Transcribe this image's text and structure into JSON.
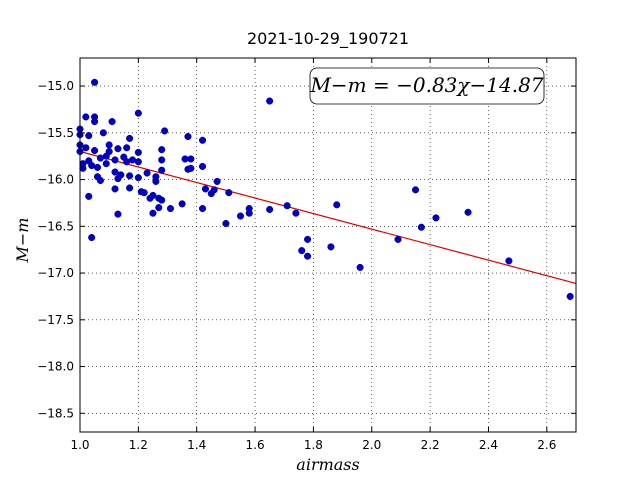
{
  "chart_data": {
    "type": "scatter",
    "title": "2021-10-29_190721",
    "xlabel": "airmass",
    "ylabel": "M−m",
    "xlim": [
      1.0,
      2.7
    ],
    "ylim": [
      -18.7,
      -14.7
    ],
    "y_inverted": true,
    "grid": true,
    "x_ticks": [
      1.0,
      1.2,
      1.4,
      1.6,
      1.8,
      2.0,
      2.2,
      2.4,
      2.6
    ],
    "x_tick_labels": [
      "1.0",
      "1.2",
      "1.4",
      "1.6",
      "1.8",
      "2.0",
      "2.2",
      "2.4",
      "2.6"
    ],
    "y_ticks": [
      -15.0,
      -15.5,
      -16.0,
      -16.5,
      -17.0,
      -17.5,
      -18.0,
      -18.5
    ],
    "y_tick_labels": [
      "−15.0",
      "−15.5",
      "−16.0",
      "−16.5",
      "−17.0",
      "−17.5",
      "−18.0",
      "−18.5"
    ],
    "annotation": "M−m = −0.83χ−14.87",
    "point_color": "#0000cc",
    "fit_color": "#dd0000",
    "fit": {
      "slope": -0.83,
      "intercept": -14.87,
      "x_range": [
        1.0,
        2.7
      ]
    },
    "points": [
      {
        "x": 1.0,
        "y": -15.46
      },
      {
        "x": 1.0,
        "y": -15.52
      },
      {
        "x": 1.0,
        "y": -15.63
      },
      {
        "x": 1.0,
        "y": -15.7
      },
      {
        "x": 1.01,
        "y": -15.88
      },
      {
        "x": 1.01,
        "y": -15.83
      },
      {
        "x": 1.02,
        "y": -15.33
      },
      {
        "x": 1.02,
        "y": -15.66
      },
      {
        "x": 1.03,
        "y": -15.53
      },
      {
        "x": 1.03,
        "y": -15.8
      },
      {
        "x": 1.03,
        "y": -16.18
      },
      {
        "x": 1.04,
        "y": -15.85
      },
      {
        "x": 1.04,
        "y": -16.62
      },
      {
        "x": 1.05,
        "y": -15.33
      },
      {
        "x": 1.05,
        "y": -15.38
      },
      {
        "x": 1.05,
        "y": -15.69
      },
      {
        "x": 1.05,
        "y": -14.96
      },
      {
        "x": 1.06,
        "y": -15.87
      },
      {
        "x": 1.06,
        "y": -15.97
      },
      {
        "x": 1.07,
        "y": -15.77
      },
      {
        "x": 1.07,
        "y": -16.01
      },
      {
        "x": 1.08,
        "y": -15.5
      },
      {
        "x": 1.09,
        "y": -15.75
      },
      {
        "x": 1.09,
        "y": -15.83
      },
      {
        "x": 1.1,
        "y": -15.63
      },
      {
        "x": 1.1,
        "y": -15.7
      },
      {
        "x": 1.11,
        "y": -15.38
      },
      {
        "x": 1.12,
        "y": -15.79
      },
      {
        "x": 1.12,
        "y": -16.1
      },
      {
        "x": 1.12,
        "y": -15.92
      },
      {
        "x": 1.13,
        "y": -15.67
      },
      {
        "x": 1.13,
        "y": -15.99
      },
      {
        "x": 1.13,
        "y": -16.37
      },
      {
        "x": 1.14,
        "y": -15.95
      },
      {
        "x": 1.15,
        "y": -15.76
      },
      {
        "x": 1.16,
        "y": -15.81
      },
      {
        "x": 1.16,
        "y": -15.66
      },
      {
        "x": 1.17,
        "y": -15.56
      },
      {
        "x": 1.17,
        "y": -15.96
      },
      {
        "x": 1.17,
        "y": -16.09
      },
      {
        "x": 1.18,
        "y": -15.79
      },
      {
        "x": 1.2,
        "y": -15.29
      },
      {
        "x": 1.2,
        "y": -15.71
      },
      {
        "x": 1.2,
        "y": -15.81
      },
      {
        "x": 1.2,
        "y": -15.98
      },
      {
        "x": 1.21,
        "y": -16.13
      },
      {
        "x": 1.22,
        "y": -16.14
      },
      {
        "x": 1.23,
        "y": -15.93
      },
      {
        "x": 1.24,
        "y": -16.2
      },
      {
        "x": 1.25,
        "y": -16.17
      },
      {
        "x": 1.25,
        "y": -16.36
      },
      {
        "x": 1.26,
        "y": -15.97
      },
      {
        "x": 1.26,
        "y": -16.02
      },
      {
        "x": 1.27,
        "y": -16.2
      },
      {
        "x": 1.27,
        "y": -16.3
      },
      {
        "x": 1.28,
        "y": -15.79
      },
      {
        "x": 1.28,
        "y": -15.68
      },
      {
        "x": 1.28,
        "y": -15.9
      },
      {
        "x": 1.28,
        "y": -16.22
      },
      {
        "x": 1.29,
        "y": -15.48
      },
      {
        "x": 1.31,
        "y": -16.31
      },
      {
        "x": 1.35,
        "y": -16.26
      },
      {
        "x": 1.36,
        "y": -15.78
      },
      {
        "x": 1.37,
        "y": -15.89
      },
      {
        "x": 1.37,
        "y": -15.54
      },
      {
        "x": 1.38,
        "y": -15.88
      },
      {
        "x": 1.38,
        "y": -15.78
      },
      {
        "x": 1.42,
        "y": -15.58
      },
      {
        "x": 1.42,
        "y": -15.86
      },
      {
        "x": 1.42,
        "y": -16.31
      },
      {
        "x": 1.43,
        "y": -16.1
      },
      {
        "x": 1.45,
        "y": -16.15
      },
      {
        "x": 1.46,
        "y": -16.11
      },
      {
        "x": 1.47,
        "y": -16.02
      },
      {
        "x": 1.5,
        "y": -16.47
      },
      {
        "x": 1.51,
        "y": -16.14
      },
      {
        "x": 1.55,
        "y": -16.39
      },
      {
        "x": 1.58,
        "y": -16.31
      },
      {
        "x": 1.58,
        "y": -16.36
      },
      {
        "x": 1.65,
        "y": -15.16
      },
      {
        "x": 1.65,
        "y": -16.32
      },
      {
        "x": 1.71,
        "y": -16.28
      },
      {
        "x": 1.74,
        "y": -16.36
      },
      {
        "x": 1.76,
        "y": -16.76
      },
      {
        "x": 1.78,
        "y": -16.64
      },
      {
        "x": 1.78,
        "y": -16.82
      },
      {
        "x": 1.86,
        "y": -16.72
      },
      {
        "x": 1.88,
        "y": -16.27
      },
      {
        "x": 1.96,
        "y": -16.94
      },
      {
        "x": 2.09,
        "y": -16.64
      },
      {
        "x": 2.15,
        "y": -16.11
      },
      {
        "x": 2.17,
        "y": -16.51
      },
      {
        "x": 2.22,
        "y": -16.41
      },
      {
        "x": 2.33,
        "y": -16.35
      },
      {
        "x": 2.47,
        "y": -16.87
      },
      {
        "x": 2.68,
        "y": -17.25
      }
    ]
  }
}
